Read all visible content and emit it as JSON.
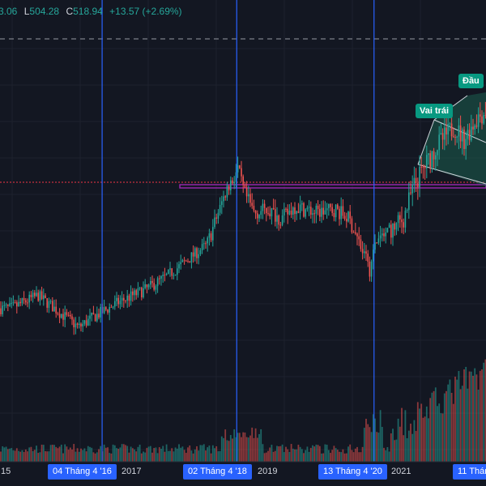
{
  "header": {
    "o_value": "3.06",
    "l_label": "L",
    "l_value": "504.28",
    "c_label": "C",
    "c_value": "518.94",
    "change": "+13.57 (+2.69%)"
  },
  "colors": {
    "background": "#131722",
    "up": "#26a69a",
    "down": "#ef5350",
    "event_line": "#2962ff",
    "neckline": "#9c27b0",
    "resistance": "#f23645",
    "pattern_fill": "#1b5e4f",
    "badge": "#089981"
  },
  "chart_data": {
    "type": "candlestick",
    "ticker_ohlc_visible": {
      "L": 504.28,
      "C": 518.94,
      "change": 13.57,
      "change_pct": 2.69
    },
    "x_tick_labels": [
      "15",
      "2017",
      "2019",
      "2021"
    ],
    "event_lines": [
      {
        "label": "04 Tháng 4 '16",
        "year": 2016.26
      },
      {
        "label": "02 Tháng 4 '18",
        "year": 2018.25
      },
      {
        "label": "13 Tháng 4 '20",
        "year": 2020.28
      },
      {
        "label": "11 Tháng",
        "year": 2022.2
      }
    ],
    "annotations": [
      {
        "text": "Vai trái"
      },
      {
        "text": "Đầu"
      }
    ],
    "price_path": [
      [
        2014.9,
        40
      ],
      [
        2015.3,
        44
      ],
      [
        2015.6,
        39
      ],
      [
        2015.9,
        34
      ],
      [
        2016.1,
        37
      ],
      [
        2016.5,
        42
      ],
      [
        2016.9,
        46
      ],
      [
        2017.2,
        50
      ],
      [
        2017.5,
        55
      ],
      [
        2017.8,
        60
      ],
      [
        2017.95,
        69
      ],
      [
        2018.1,
        78
      ],
      [
        2018.2,
        81
      ],
      [
        2018.25,
        84
      ],
      [
        2018.35,
        76
      ],
      [
        2018.5,
        70
      ],
      [
        2018.7,
        71
      ],
      [
        2018.9,
        68
      ],
      [
        2019.1,
        72
      ],
      [
        2019.4,
        70
      ],
      [
        2019.7,
        71
      ],
      [
        2019.9,
        68
      ],
      [
        2020.0,
        63
      ],
      [
        2020.15,
        55
      ],
      [
        2020.2,
        52
      ],
      [
        2020.3,
        61
      ],
      [
        2020.5,
        64
      ],
      [
        2020.7,
        68
      ],
      [
        2020.85,
        78
      ],
      [
        2021.0,
        84
      ],
      [
        2021.2,
        91
      ],
      [
        2021.45,
        97
      ],
      [
        2021.6,
        93
      ],
      [
        2021.8,
        100
      ],
      [
        2022.0,
        103
      ],
      [
        2022.1,
        100
      ]
    ]
  }
}
